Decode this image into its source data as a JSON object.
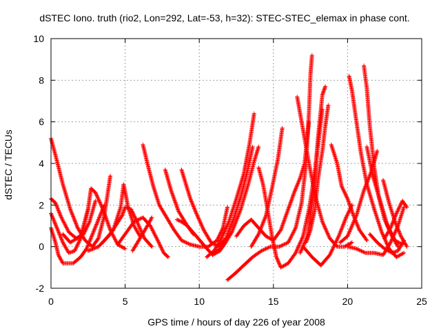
{
  "chart_data": {
    "type": "scatter",
    "title": "dSTEC Iono. truth (rio2, Lon=292, Lat=-53, h=32): STEC-STEC_elemax in phase cont.",
    "xlabel": "GPS time / hours of day 226 of year 2008",
    "ylabel": "dSTEC  / TECUs",
    "xlim": [
      0,
      25
    ],
    "ylim": [
      -2,
      10
    ],
    "xticks": [
      0,
      5,
      10,
      15,
      20,
      25
    ],
    "yticks": [
      -2,
      0,
      2,
      4,
      6,
      8,
      10
    ],
    "grid": true,
    "marker": "+",
    "color": "#ff0000",
    "arcs": [
      [
        [
          0.0,
          5.2
        ],
        [
          0.3,
          4.4
        ],
        [
          0.8,
          3.0
        ],
        [
          1.3,
          1.8
        ],
        [
          1.8,
          0.9
        ],
        [
          2.3,
          0.3
        ],
        [
          2.8,
          0.0
        ],
        [
          3.2,
          0.4
        ],
        [
          3.6,
          1.5
        ],
        [
          4.0,
          3.4
        ]
      ],
      [
        [
          0.0,
          2.3
        ],
        [
          0.3,
          2.1
        ],
        [
          0.7,
          1.4
        ],
        [
          1.2,
          0.7
        ],
        [
          1.7,
          0.4
        ],
        [
          2.2,
          0.6
        ],
        [
          2.6,
          1.2
        ],
        [
          3.0,
          2.2
        ]
      ],
      [
        [
          0.0,
          1.6
        ],
        [
          0.4,
          0.9
        ],
        [
          0.8,
          0.2
        ],
        [
          1.2,
          -0.3
        ],
        [
          1.6,
          -0.2
        ],
        [
          2.0,
          0.4
        ],
        [
          2.3,
          1.2
        ],
        [
          2.5,
          1.8
        ]
      ],
      [
        [
          0.0,
          0.9
        ],
        [
          0.3,
          0.2
        ],
        [
          0.5,
          -0.4
        ],
        [
          0.8,
          -0.8
        ],
        [
          1.5,
          -0.8
        ],
        [
          2.0,
          -0.5
        ],
        [
          2.4,
          -0.1
        ],
        [
          2.8,
          0.6
        ],
        [
          3.2,
          1.3
        ],
        [
          3.6,
          2.0
        ]
      ],
      [
        [
          0.8,
          0.6
        ],
        [
          1.3,
          0.2
        ],
        [
          2.0,
          0.5
        ],
        [
          2.5,
          1.8
        ],
        [
          2.7,
          2.8
        ],
        [
          3.0,
          2.6
        ],
        [
          3.5,
          1.8
        ],
        [
          4.0,
          0.8
        ],
        [
          4.5,
          0.1
        ],
        [
          5.0,
          -0.1
        ]
      ],
      [
        [
          2.5,
          -0.2
        ],
        [
          3.2,
          0.0
        ],
        [
          4.0,
          0.6
        ],
        [
          4.8,
          1.5
        ],
        [
          5.0,
          1.9
        ],
        [
          5.4,
          1.8
        ],
        [
          5.8,
          1.2
        ],
        [
          6.3,
          0.4
        ],
        [
          6.8,
          0.0
        ]
      ],
      [
        [
          3.5,
          0.2
        ],
        [
          4.2,
          0.8
        ],
        [
          4.7,
          1.9
        ],
        [
          4.9,
          3.0
        ],
        [
          5.2,
          1.9
        ],
        [
          5.6,
          1.0
        ],
        [
          6.0,
          0.5
        ]
      ],
      [
        [
          6.2,
          4.9
        ],
        [
          6.5,
          4.0
        ],
        [
          6.9,
          2.9
        ],
        [
          7.3,
          2.0
        ],
        [
          7.8,
          1.4
        ],
        [
          8.3,
          0.8
        ],
        [
          8.8,
          0.3
        ],
        [
          9.4,
          0.1
        ],
        [
          10.0,
          0.0
        ],
        [
          10.6,
          0.0
        ],
        [
          11.2,
          0.3
        ],
        [
          11.6,
          0.9
        ],
        [
          11.9,
          1.9
        ]
      ],
      [
        [
          4.5,
          0.1
        ],
        [
          5.0,
          0.6
        ],
        [
          5.6,
          1.2
        ],
        [
          6.2,
          1.4
        ],
        [
          6.7,
          1.0
        ],
        [
          7.2,
          0.3
        ],
        [
          7.6,
          -0.3
        ],
        [
          7.9,
          -0.5
        ]
      ],
      [
        [
          5.5,
          -0.2
        ],
        [
          6.0,
          0.4
        ],
        [
          6.5,
          1.0
        ],
        [
          6.8,
          1.4
        ]
      ],
      [
        [
          7.7,
          3.7
        ],
        [
          8.1,
          2.7
        ],
        [
          8.6,
          1.7
        ],
        [
          9.2,
          1.0
        ],
        [
          9.8,
          0.5
        ],
        [
          10.4,
          0.0
        ],
        [
          10.9,
          -0.4
        ],
        [
          11.4,
          -0.2
        ],
        [
          11.8,
          0.3
        ]
      ],
      [
        [
          8.8,
          3.7
        ],
        [
          9.1,
          3.0
        ],
        [
          9.4,
          2.3
        ],
        [
          9.8,
          1.6
        ],
        [
          10.3,
          0.8
        ],
        [
          10.8,
          0.2
        ],
        [
          11.3,
          0.0
        ],
        [
          11.8,
          0.4
        ],
        [
          12.3,
          1.3
        ],
        [
          12.8,
          2.4
        ],
        [
          13.2,
          3.5
        ],
        [
          13.6,
          4.8
        ]
      ],
      [
        [
          8.5,
          1.3
        ],
        [
          8.8,
          1.2
        ],
        [
          9.2,
          1.0
        ],
        [
          9.6,
          0.6
        ]
      ],
      [
        [
          11.9,
          -1.6
        ],
        [
          12.4,
          -1.3
        ],
        [
          13.0,
          -0.9
        ],
        [
          13.6,
          -0.5
        ],
        [
          14.2,
          -0.2
        ],
        [
          14.8,
          0.0
        ],
        [
          15.4,
          0.0
        ],
        [
          16.0,
          0.2
        ],
        [
          16.5,
          0.9
        ],
        [
          16.9,
          2.1
        ],
        [
          17.2,
          4.0
        ],
        [
          17.4,
          6.5
        ],
        [
          17.5,
          8.3
        ],
        [
          17.6,
          9.2
        ]
      ],
      [
        [
          10.5,
          -0.5
        ],
        [
          11.0,
          -0.2
        ],
        [
          11.5,
          0.4
        ],
        [
          12.0,
          1.2
        ],
        [
          12.5,
          2.3
        ],
        [
          13.0,
          3.5
        ],
        [
          13.4,
          5.0
        ],
        [
          13.7,
          6.4
        ]
      ],
      [
        [
          11.0,
          -0.3
        ],
        [
          11.6,
          0.0
        ],
        [
          12.2,
          0.7
        ],
        [
          12.8,
          1.8
        ],
        [
          13.3,
          3.0
        ],
        [
          13.7,
          4.1
        ],
        [
          14.0,
          4.8
        ]
      ],
      [
        [
          12.5,
          0.5
        ],
        [
          13.0,
          1.0
        ],
        [
          13.5,
          1.3
        ],
        [
          14.0,
          0.9
        ],
        [
          14.5,
          0.5
        ],
        [
          15.0,
          0.3
        ],
        [
          15.5,
          0.8
        ],
        [
          16.0,
          1.8
        ],
        [
          16.4,
          2.6
        ],
        [
          16.8,
          3.3
        ],
        [
          17.1,
          4.0
        ],
        [
          17.4,
          6.0
        ]
      ],
      [
        [
          13.5,
          0.0
        ],
        [
          14.0,
          0.6
        ],
        [
          14.5,
          1.5
        ],
        [
          14.9,
          2.8
        ],
        [
          15.3,
          4.2
        ],
        [
          15.6,
          5.7
        ]
      ],
      [
        [
          14.0,
          3.8
        ],
        [
          14.3,
          3.0
        ],
        [
          14.6,
          1.8
        ],
        [
          14.9,
          0.5
        ],
        [
          15.2,
          -0.5
        ],
        [
          15.5,
          -1.0
        ],
        [
          16.0,
          -0.8
        ],
        [
          16.5,
          -0.3
        ],
        [
          17.0,
          0.5
        ],
        [
          17.4,
          1.8
        ],
        [
          17.8,
          3.6
        ],
        [
          18.1,
          5.4
        ],
        [
          18.3,
          6.6
        ]
      ],
      [
        [
          16.6,
          7.2
        ],
        [
          16.8,
          6.4
        ],
        [
          17.1,
          5.2
        ],
        [
          17.4,
          4.0
        ],
        [
          17.8,
          2.5
        ],
        [
          18.3,
          1.2
        ],
        [
          18.8,
          0.4
        ],
        [
          19.3,
          0.0
        ],
        [
          19.8,
          0.0
        ],
        [
          20.3,
          0.2
        ]
      ],
      [
        [
          17.2,
          0.2
        ],
        [
          17.5,
          0.8
        ],
        [
          17.8,
          1.8
        ],
        [
          18.0,
          3.2
        ],
        [
          18.3,
          4.6
        ],
        [
          18.5,
          5.8
        ],
        [
          18.7,
          6.8
        ]
      ],
      [
        [
          16.8,
          -0.3
        ],
        [
          17.3,
          0.5
        ],
        [
          17.7,
          2.5
        ],
        [
          18.0,
          5.2
        ],
        [
          18.3,
          7.3
        ],
        [
          18.5,
          7.7
        ]
      ],
      [
        [
          18.9,
          4.9
        ],
        [
          19.3,
          4.0
        ],
        [
          19.6,
          2.9
        ],
        [
          20.0,
          2.3
        ],
        [
          20.4,
          1.5
        ],
        [
          20.8,
          0.8
        ],
        [
          21.3,
          0.3
        ]
      ],
      [
        [
          17.0,
          0.0
        ],
        [
          17.6,
          -0.5
        ],
        [
          18.2,
          -0.9
        ],
        [
          18.8,
          -0.4
        ],
        [
          19.4,
          0.5
        ],
        [
          19.9,
          1.4
        ],
        [
          20.3,
          2.0
        ]
      ],
      [
        [
          20.1,
          8.2
        ],
        [
          20.3,
          7.5
        ],
        [
          20.6,
          6.0
        ],
        [
          20.9,
          4.5
        ],
        [
          21.3,
          3.0
        ],
        [
          21.8,
          1.8
        ],
        [
          22.3,
          0.7
        ],
        [
          22.8,
          -0.1
        ],
        [
          23.3,
          -0.5
        ],
        [
          23.8,
          -0.3
        ]
      ],
      [
        [
          21.1,
          8.7
        ],
        [
          21.3,
          7.6
        ],
        [
          21.5,
          5.8
        ],
        [
          21.8,
          3.8
        ],
        [
          22.1,
          2.4
        ],
        [
          22.5,
          1.3
        ],
        [
          23.0,
          0.5
        ],
        [
          23.4,
          0.0
        ]
      ],
      [
        [
          19.5,
          0.2
        ],
        [
          20.0,
          0.5
        ],
        [
          20.6,
          1.5
        ],
        [
          21.1,
          2.7
        ],
        [
          21.6,
          3.6
        ],
        [
          22.0,
          4.6
        ]
      ],
      [
        [
          20.0,
          0.0
        ],
        [
          20.6,
          -0.1
        ],
        [
          21.2,
          -0.3
        ],
        [
          21.8,
          -0.3
        ],
        [
          22.4,
          -0.4
        ],
        [
          22.9,
          0.2
        ],
        [
          23.4,
          1.0
        ],
        [
          23.8,
          1.9
        ]
      ],
      [
        [
          21.5,
          0.6
        ],
        [
          22.0,
          0.2
        ],
        [
          22.5,
          -0.1
        ],
        [
          23.0,
          -0.3
        ],
        [
          23.4,
          -0.2
        ],
        [
          23.8,
          0.3
        ]
      ],
      [
        [
          21.3,
          4.8
        ],
        [
          21.7,
          3.4
        ],
        [
          22.2,
          2.2
        ],
        [
          22.7,
          1.0
        ],
        [
          23.2,
          0.3
        ],
        [
          23.7,
          0.1
        ]
      ],
      [
        [
          22.5,
          0.4
        ],
        [
          22.9,
          0.9
        ],
        [
          23.3,
          1.6
        ],
        [
          23.7,
          2.2
        ],
        [
          24.0,
          1.9
        ]
      ],
      [
        [
          22.4,
          3.2
        ],
        [
          22.8,
          2.1
        ],
        [
          23.2,
          1.2
        ],
        [
          23.6,
          0.5
        ],
        [
          24.0,
          0.0
        ]
      ]
    ]
  }
}
